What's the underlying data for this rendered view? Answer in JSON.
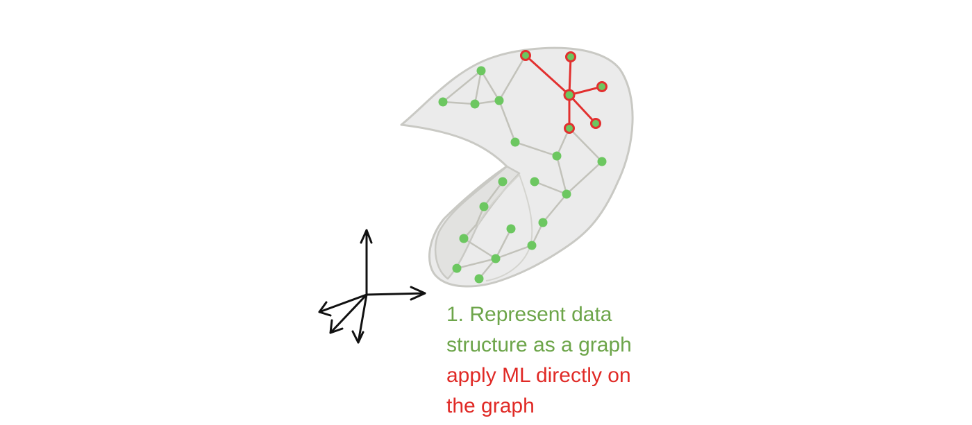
{
  "caption": {
    "line1": "1. Represent data",
    "line2": "structure as a graph",
    "line3": "apply ML directly on",
    "line4": "the graph"
  },
  "colors": {
    "surface_fill": "#ebebeb",
    "surface_edge": "#c9c9c4",
    "node": "#6cc760",
    "node_edge": "#c2c2ba",
    "highlight": "#e2302f",
    "axes": "#111111",
    "caption_step": "#6da54a",
    "caption_action": "#e02a26"
  }
}
